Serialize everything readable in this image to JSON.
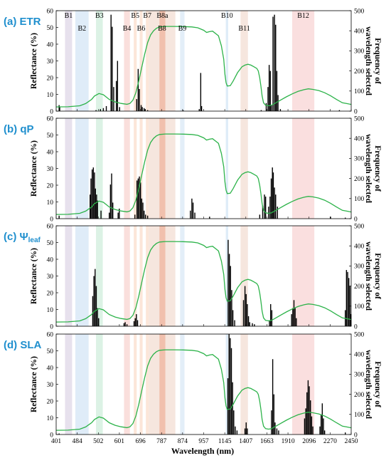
{
  "chart_data": {
    "type": "line",
    "x_tick_labels": [
      "401",
      "484",
      "502",
      "601",
      "696",
      "787",
      "874",
      "957",
      "1145",
      "1407",
      "1663",
      "1910",
      "2096",
      "2270",
      "2450"
    ],
    "xlabel": "Wavelength (nm)",
    "ylabel_left": "Reflectance (%)",
    "ylabel_right": "Frequency of wavelength selected",
    "ylim_left": [
      0,
      60
    ],
    "ylim_right": [
      0,
      500
    ],
    "left_ticks": [
      "0",
      "10",
      "20",
      "30",
      "40",
      "50",
      "60"
    ],
    "right_ticks": [
      "0",
      "100",
      "200",
      "300",
      "400",
      "500"
    ],
    "bands": [
      {
        "label": "B1",
        "from": 3,
        "to": 5.4,
        "color": "#e3dcea"
      },
      {
        "label": "B2",
        "from": 6.5,
        "to": 11,
        "color": "#d9e9f7"
      },
      {
        "label": "B3",
        "from": 13.5,
        "to": 15.8,
        "color": "#d6f0e0"
      },
      {
        "label": "B4",
        "from": 23,
        "to": 25,
        "color": "#f9d9d6"
      },
      {
        "label": "B5",
        "from": 26.3,
        "to": 27.3,
        "color": "#fbe2d2"
      },
      {
        "label": "B6",
        "from": 28.3,
        "to": 29.3,
        "color": "#fbe2d2"
      },
      {
        "label": "B7",
        "from": 30.4,
        "to": 31.4,
        "color": "#fbe2d2"
      },
      {
        "label": "B8",
        "from": 31.4,
        "to": 40.4,
        "color": "#f5e2d8"
      },
      {
        "label": "B8a",
        "from": 35,
        "to": 37,
        "color": "#f0b9a4"
      },
      {
        "label": "B9",
        "from": 42,
        "to": 43.5,
        "color": "#deebf7"
      },
      {
        "label": "B10",
        "from": 57.5,
        "to": 58.3,
        "color": "#d9e9f7"
      },
      {
        "label": "B11",
        "from": 62.5,
        "to": 65,
        "color": "#f5e2d8"
      },
      {
        "label": "B12",
        "from": 80,
        "to": 87.5,
        "color": "#f9d9d9"
      }
    ],
    "reflectance_curve": {
      "color": "#2db34a",
      "points": [
        [
          0,
          2.5
        ],
        [
          4,
          2.6
        ],
        [
          8,
          3.2
        ],
        [
          10,
          4.5
        ],
        [
          12,
          7
        ],
        [
          13,
          9
        ],
        [
          14.5,
          10.5
        ],
        [
          16,
          9.8
        ],
        [
          18,
          7
        ],
        [
          20,
          5.5
        ],
        [
          22,
          4.6
        ],
        [
          24,
          4.1
        ],
        [
          25,
          4.6
        ],
        [
          26,
          6.5
        ],
        [
          27,
          11
        ],
        [
          28,
          18
        ],
        [
          29,
          26
        ],
        [
          30,
          34
        ],
        [
          31,
          41
        ],
        [
          32,
          45.5
        ],
        [
          33,
          48
        ],
        [
          34,
          49.5
        ],
        [
          35,
          50.3
        ],
        [
          37,
          50.6
        ],
        [
          40,
          50.6
        ],
        [
          43,
          50.5
        ],
        [
          46,
          50.3
        ],
        [
          48,
          49.8
        ],
        [
          50,
          48.3
        ],
        [
          51,
          47
        ],
        [
          52,
          47.5
        ],
        [
          53,
          47.8
        ],
        [
          55,
          45
        ],
        [
          56,
          39
        ],
        [
          56.8,
          31
        ],
        [
          57.2,
          22
        ],
        [
          57.6,
          17
        ],
        [
          58,
          15
        ],
        [
          59,
          15.2
        ],
        [
          60,
          18
        ],
        [
          61.5,
          23
        ],
        [
          63,
          26.5
        ],
        [
          64,
          27.5
        ],
        [
          65,
          28
        ],
        [
          66,
          27.5
        ],
        [
          67,
          26.5
        ],
        [
          68,
          25.5
        ],
        [
          68.5,
          24
        ],
        [
          69,
          20
        ],
        [
          69.4,
          15
        ],
        [
          69.8,
          9
        ],
        [
          70.3,
          5
        ],
        [
          71,
          3.5
        ],
        [
          72,
          3.2
        ],
        [
          73,
          3.5
        ],
        [
          74,
          4.5
        ],
        [
          76,
          6.5
        ],
        [
          78,
          8.5
        ],
        [
          80,
          10.3
        ],
        [
          82,
          11.8
        ],
        [
          84,
          12.8
        ],
        [
          85.5,
          13.3
        ],
        [
          87,
          13
        ],
        [
          89,
          12.3
        ],
        [
          91,
          11
        ],
        [
          93,
          9.2
        ],
        [
          95,
          7
        ],
        [
          97,
          5
        ],
        [
          98.5,
          4.5
        ],
        [
          100,
          4
        ]
      ]
    },
    "panels": [
      {
        "id": "a",
        "title_prefix": "(a)",
        "title": "ETR",
        "title_sub": "",
        "frequency_bars": [
          [
            1,
            30
          ],
          [
            1.2,
            20
          ],
          [
            13.5,
            5
          ],
          [
            15,
            10
          ],
          [
            16,
            15
          ],
          [
            17,
            25
          ],
          [
            18.6,
            480
          ],
          [
            19,
            420
          ],
          [
            19.5,
            120
          ],
          [
            20.4,
            150
          ],
          [
            20.8,
            250
          ],
          [
            21.5,
            20
          ],
          [
            27.3,
            60
          ],
          [
            27.8,
            210
          ],
          [
            28.2,
            110
          ],
          [
            28.8,
            30
          ],
          [
            29.2,
            20
          ],
          [
            29.8,
            15
          ],
          [
            30.2,
            10
          ],
          [
            31,
            5
          ],
          [
            43,
            5
          ],
          [
            48.5,
            10
          ],
          [
            49,
            190
          ],
          [
            49.3,
            25
          ],
          [
            69.5,
            5
          ],
          [
            71.2,
            40
          ],
          [
            71.8,
            120
          ],
          [
            72.2,
            230
          ],
          [
            72.6,
            200
          ],
          [
            73,
            30
          ],
          [
            73.5,
            470
          ],
          [
            74,
            480
          ],
          [
            74.4,
            430
          ],
          [
            74.8,
            200
          ],
          [
            75.2,
            80
          ],
          [
            76,
            10
          ],
          [
            96,
            5
          ]
        ]
      },
      {
        "id": "b",
        "title_prefix": "(b)",
        "title": "qP",
        "title_sub": "",
        "frequency_bars": [
          [
            1,
            15
          ],
          [
            11.5,
            120
          ],
          [
            11.8,
            200
          ],
          [
            12.2,
            245
          ],
          [
            12.6,
            255
          ],
          [
            13,
            230
          ],
          [
            13.3,
            150
          ],
          [
            13.7,
            120
          ],
          [
            14,
            90
          ],
          [
            15.2,
            40
          ],
          [
            18,
            30
          ],
          [
            18.4,
            170
          ],
          [
            18.8,
            225
          ],
          [
            19.2,
            80
          ],
          [
            21,
            30
          ],
          [
            21.4,
            50
          ],
          [
            26.7,
            20
          ],
          [
            27.4,
            190
          ],
          [
            27.8,
            200
          ],
          [
            28.2,
            210
          ],
          [
            28.6,
            180
          ],
          [
            29,
            100
          ],
          [
            29.4,
            80
          ],
          [
            29.8,
            40
          ],
          [
            30.3,
            20
          ],
          [
            31,
            15
          ],
          [
            45.5,
            40
          ],
          [
            46,
            100
          ],
          [
            46.4,
            80
          ],
          [
            47,
            30
          ],
          [
            52,
            10
          ],
          [
            69,
            20
          ],
          [
            70,
            65
          ],
          [
            70.6,
            120
          ],
          [
            71,
            110
          ],
          [
            72,
            60
          ],
          [
            72.5,
            110
          ],
          [
            72.9,
            200
          ],
          [
            73.3,
            255
          ],
          [
            73.6,
            230
          ],
          [
            74,
            155
          ],
          [
            74.4,
            120
          ],
          [
            75,
            60
          ],
          [
            93,
            10
          ],
          [
            98,
            5
          ]
        ]
      },
      {
        "id": "c",
        "title_prefix": "(c)",
        "title": "Ψ",
        "title_sub": "leaf",
        "frequency_bars": [
          [
            12.4,
            150
          ],
          [
            12.8,
            250
          ],
          [
            13.2,
            285
          ],
          [
            13.6,
            200
          ],
          [
            14,
            90
          ],
          [
            14.4,
            40
          ],
          [
            23,
            15
          ],
          [
            23.4,
            20
          ],
          [
            24,
            10
          ],
          [
            26.4,
            25
          ],
          [
            26.8,
            40
          ],
          [
            27.2,
            60
          ],
          [
            27.6,
            30
          ],
          [
            58.3,
            430
          ],
          [
            58.7,
            360
          ],
          [
            59.1,
            300
          ],
          [
            59.5,
            180
          ],
          [
            59.9,
            80
          ],
          [
            60.5,
            30
          ],
          [
            63.5,
            130
          ],
          [
            64,
            200
          ],
          [
            64.4,
            160
          ],
          [
            64.8,
            110
          ],
          [
            65.2,
            50
          ],
          [
            65.6,
            20
          ],
          [
            66.5,
            15
          ],
          [
            67.2,
            10
          ],
          [
            72.3,
            30
          ],
          [
            72.7,
            110
          ],
          [
            73.1,
            80
          ],
          [
            79.8,
            60
          ],
          [
            80.2,
            90
          ],
          [
            80.6,
            130
          ],
          [
            81,
            90
          ],
          [
            81.4,
            40
          ],
          [
            98,
            80
          ],
          [
            98.4,
            280
          ],
          [
            98.8,
            270
          ],
          [
            99.2,
            240
          ],
          [
            99.6,
            200
          ],
          [
            99.9,
            60
          ]
        ]
      },
      {
        "id": "d",
        "title_prefix": "(d)",
        "title": "SLA",
        "title_sub": "",
        "frequency_bars": [
          [
            1,
            5
          ],
          [
            58.2,
            280
          ],
          [
            58.6,
            500
          ],
          [
            59,
            480
          ],
          [
            59.4,
            430
          ],
          [
            59.8,
            260
          ],
          [
            60.2,
            120
          ],
          [
            60.7,
            40
          ],
          [
            61.3,
            20
          ],
          [
            64,
            30
          ],
          [
            64.4,
            60
          ],
          [
            64.8,
            30
          ],
          [
            73,
            120
          ],
          [
            73.4,
            375
          ],
          [
            73.8,
            200
          ],
          [
            74.2,
            60
          ],
          [
            74.8,
            30
          ],
          [
            75.4,
            20
          ],
          [
            84.2,
            80
          ],
          [
            84.6,
            130
          ],
          [
            85,
            210
          ],
          [
            85.4,
            270
          ],
          [
            85.8,
            240
          ],
          [
            86.2,
            170
          ],
          [
            86.6,
            90
          ],
          [
            87,
            40
          ],
          [
            89.4,
            40
          ],
          [
            89.8,
            100
          ],
          [
            90.2,
            155
          ],
          [
            90.6,
            80
          ],
          [
            91,
            20
          ],
          [
            98,
            10
          ]
        ]
      }
    ]
  }
}
